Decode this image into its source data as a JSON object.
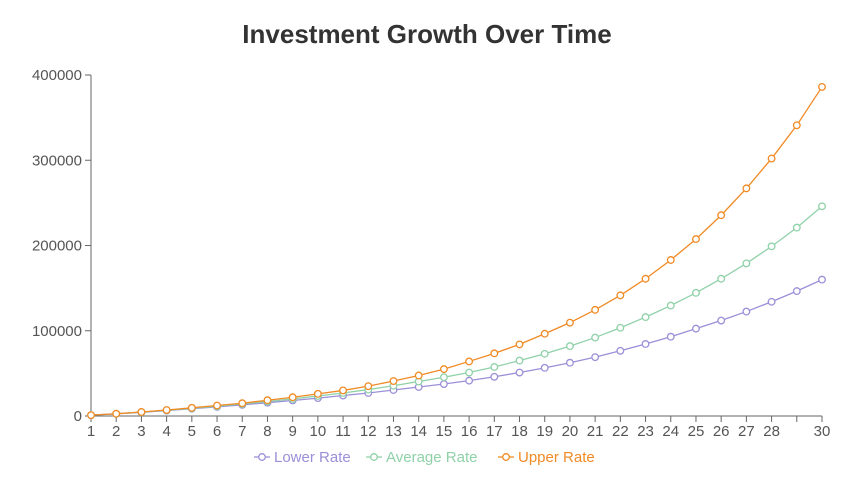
{
  "chart_data": {
    "type": "line",
    "title": "Investment Growth Over Time",
    "xlabel": "",
    "ylabel": "",
    "x": [
      1,
      2,
      3,
      4,
      5,
      6,
      7,
      8,
      9,
      10,
      11,
      12,
      13,
      14,
      15,
      16,
      17,
      18,
      19,
      20,
      21,
      22,
      23,
      24,
      25,
      26,
      27,
      28,
      29,
      30
    ],
    "x_tick_labels": [
      "1",
      "2",
      "3",
      "4",
      "5",
      "6",
      "7",
      "8",
      "9",
      "10",
      "11",
      "12",
      "13",
      "14",
      "15",
      "16",
      "17",
      "18",
      "19",
      "20",
      "21",
      "22",
      "23",
      "24",
      "25",
      "26",
      "27",
      "28",
      "",
      "30"
    ],
    "ylim": [
      0,
      400000
    ],
    "y_ticks": [
      0,
      100000,
      200000,
      300000,
      400000
    ],
    "y_tick_labels": [
      "0",
      "100000",
      "200000",
      "300000",
      "400000"
    ],
    "grid": false,
    "legend_position": "bottom-center",
    "series": [
      {
        "name": "Lower Rate",
        "color": "#9b8fd8",
        "values": [
          1000,
          2550,
          4300,
          6300,
          8600,
          10800,
          13100,
          15600,
          18200,
          21000,
          24000,
          27000,
          30500,
          34000,
          37500,
          41500,
          46000,
          51000,
          56500,
          62500,
          69000,
          76500,
          84500,
          93000,
          102500,
          112000,
          122500,
          134000,
          146500,
          160000
        ]
      },
      {
        "name": "Average Rate",
        "color": "#8fd1a8",
        "values": [
          1000,
          2600,
          4500,
          6600,
          9000,
          11500,
          14200,
          17000,
          20000,
          23500,
          27000,
          31000,
          35500,
          40500,
          45500,
          51000,
          57500,
          65000,
          73000,
          82000,
          92000,
          103500,
          116000,
          129500,
          144500,
          161000,
          179000,
          199000,
          221000,
          246000
        ]
      },
      {
        "name": "Upper Rate",
        "color": "#f08a24",
        "values": [
          1000,
          2650,
          4700,
          7000,
          9600,
          12300,
          15000,
          18500,
          22000,
          26000,
          30000,
          35000,
          41000,
          47500,
          55000,
          64000,
          73500,
          84000,
          96500,
          109500,
          124500,
          141500,
          161000,
          183000,
          207500,
          235500,
          267000,
          302000,
          341000,
          386000
        ]
      }
    ]
  }
}
